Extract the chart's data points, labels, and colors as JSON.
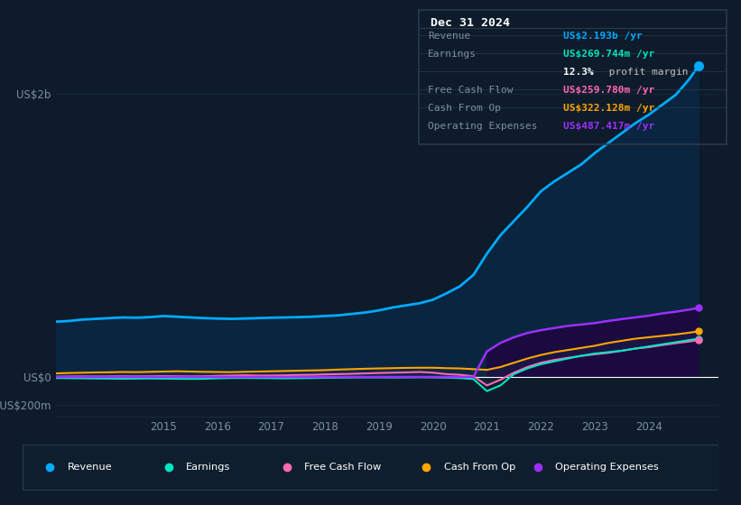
{
  "bg_color": "#0d1b2a",
  "plot_bg_color": "#0d1b2a",
  "grid_color": "#1e2d3d",
  "axis_label_color": "#8090a0",
  "zero_line_color": "#ffffff",
  "revenue_color": "#00aaff",
  "revenue_fill": "#0a2540",
  "earnings_color": "#00e5c0",
  "fcf_color": "#ff69b4",
  "cashfromop_color": "#ffa500",
  "opex_color": "#9b30ff",
  "opex_fill": "#1a0a40",
  "years": [
    2013.0,
    2013.25,
    2013.5,
    2013.75,
    2014.0,
    2014.25,
    2014.5,
    2014.75,
    2015.0,
    2015.25,
    2015.5,
    2015.75,
    2016.0,
    2016.25,
    2016.5,
    2016.75,
    2017.0,
    2017.25,
    2017.5,
    2017.75,
    2018.0,
    2018.25,
    2018.5,
    2018.75,
    2019.0,
    2019.25,
    2019.5,
    2019.75,
    2020.0,
    2020.25,
    2020.5,
    2020.75,
    2021.0,
    2021.25,
    2021.5,
    2021.75,
    2022.0,
    2022.25,
    2022.5,
    2022.75,
    2023.0,
    2023.25,
    2023.5,
    2023.75,
    2024.0,
    2024.25,
    2024.5,
    2024.75,
    2024.92
  ],
  "revenue": [
    390,
    395,
    405,
    410,
    415,
    420,
    418,
    422,
    430,
    425,
    420,
    415,
    412,
    410,
    412,
    415,
    418,
    420,
    422,
    425,
    430,
    435,
    445,
    455,
    470,
    490,
    505,
    520,
    545,
    590,
    640,
    720,
    870,
    1000,
    1100,
    1200,
    1310,
    1380,
    1440,
    1500,
    1580,
    1650,
    1720,
    1790,
    1850,
    1920,
    1990,
    2100,
    2193
  ],
  "earnings": [
    -8,
    -9,
    -10,
    -11,
    -12,
    -13,
    -12,
    -11,
    -12,
    -13,
    -14,
    -13,
    -10,
    -8,
    -7,
    -8,
    -9,
    -10,
    -9,
    -8,
    -6,
    -5,
    -4,
    -3,
    -3,
    -4,
    -3,
    -2,
    -3,
    -5,
    -8,
    -15,
    -100,
    -60,
    20,
    60,
    90,
    110,
    130,
    150,
    165,
    175,
    185,
    200,
    215,
    230,
    245,
    260,
    270
  ],
  "fcf": [
    2,
    3,
    4,
    3,
    4,
    5,
    4,
    5,
    6,
    5,
    4,
    5,
    8,
    10,
    12,
    10,
    10,
    12,
    14,
    15,
    18,
    20,
    22,
    25,
    28,
    30,
    32,
    35,
    30,
    20,
    15,
    5,
    -60,
    -20,
    30,
    70,
    100,
    120,
    135,
    148,
    160,
    170,
    185,
    200,
    210,
    225,
    238,
    250,
    260
  ],
  "cashfromop": [
    25,
    28,
    30,
    32,
    33,
    35,
    34,
    36,
    38,
    40,
    38,
    36,
    35,
    34,
    36,
    38,
    40,
    42,
    44,
    46,
    48,
    52,
    55,
    58,
    60,
    62,
    64,
    65,
    65,
    62,
    60,
    55,
    50,
    70,
    100,
    130,
    155,
    175,
    190,
    205,
    220,
    240,
    255,
    270,
    280,
    290,
    300,
    312,
    322
  ],
  "opex": [
    0,
    0,
    0,
    0,
    0,
    0,
    0,
    0,
    0,
    0,
    0,
    0,
    0,
    0,
    0,
    0,
    0,
    0,
    0,
    0,
    0,
    0,
    0,
    0,
    0,
    0,
    0,
    0,
    0,
    0,
    0,
    0,
    180,
    240,
    280,
    310,
    330,
    345,
    360,
    370,
    380,
    395,
    408,
    420,
    432,
    448,
    460,
    475,
    487
  ],
  "xlim": [
    2013.0,
    2025.3
  ],
  "ylim": [
    -280,
    2250
  ],
  "yticks": [
    -200,
    0,
    2000
  ],
  "ytick_labels": [
    "-US$200m",
    "US$0",
    "US$2b"
  ],
  "xtick_years": [
    2015,
    2016,
    2017,
    2018,
    2019,
    2020,
    2021,
    2022,
    2023,
    2024
  ],
  "info_box": {
    "date": "Dec 31 2024",
    "rows": [
      {
        "label": "Revenue",
        "value": "US$2.193b /yr",
        "value_color": "#00aaff"
      },
      {
        "label": "Earnings",
        "value": "US$269.744m /yr",
        "value_color": "#00e5c0"
      },
      {
        "label": "",
        "value": "12.3% profit margin",
        "value_color": "#e0e0e0",
        "bold_part": "12.3%"
      },
      {
        "label": "Free Cash Flow",
        "value": "US$259.780m /yr",
        "value_color": "#ff69b4"
      },
      {
        "label": "Cash From Op",
        "value": "US$322.128m /yr",
        "value_color": "#ffa500"
      },
      {
        "label": "Operating Expenses",
        "value": "US$487.417m /yr",
        "value_color": "#9b30ff"
      }
    ]
  },
  "legend": [
    {
      "label": "Revenue",
      "color": "#00aaff"
    },
    {
      "label": "Earnings",
      "color": "#00e5c0"
    },
    {
      "label": "Free Cash Flow",
      "color": "#ff69b4"
    },
    {
      "label": "Cash From Op",
      "color": "#ffa500"
    },
    {
      "label": "Operating Expenses",
      "color": "#9b30ff"
    }
  ]
}
